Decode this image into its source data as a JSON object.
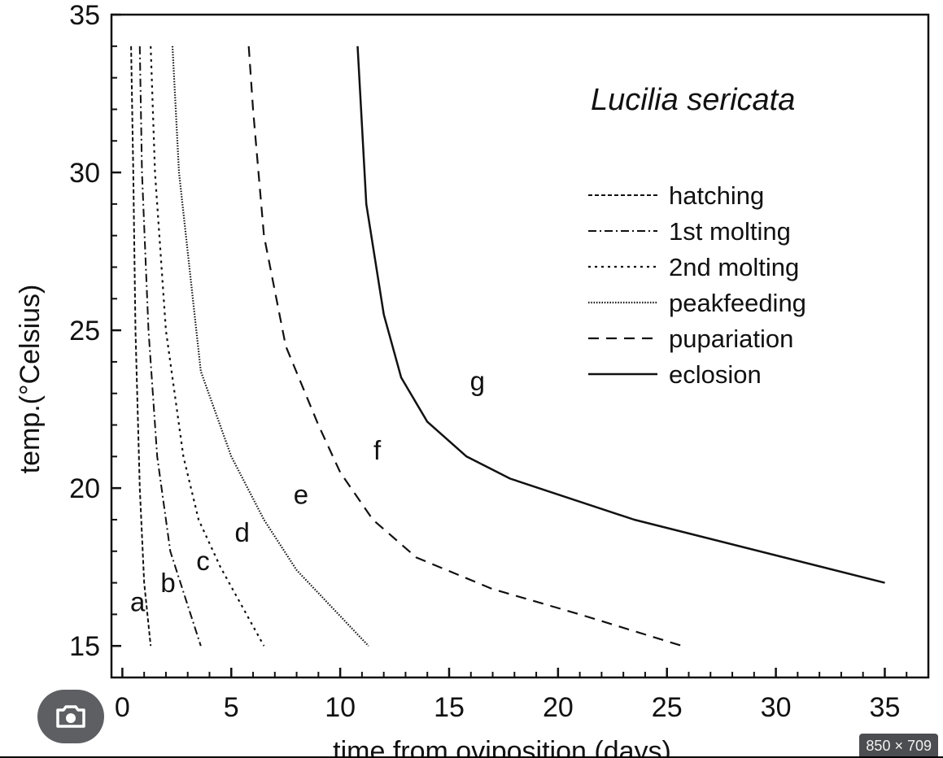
{
  "overlay": {
    "image_size_badge": "850 × 709",
    "lens_icon": "camera-lens-icon"
  },
  "chart_data": {
    "type": "line",
    "title": "Lucilia sericata",
    "xlabel": "time from oviposition (days)",
    "ylabel": "temp.(°Celsius)",
    "xlim": [
      -0.5,
      37
    ],
    "ylim": [
      14,
      35
    ],
    "xticks": [
      0,
      5,
      10,
      15,
      20,
      25,
      30,
      35
    ],
    "yticks": [
      15,
      20,
      25,
      30,
      35
    ],
    "legend_position": "upper-right",
    "series": [
      {
        "name": "hatching",
        "style": "dashed-fine",
        "points": [
          [
            0.4,
            34
          ],
          [
            0.5,
            30
          ],
          [
            0.6,
            25
          ],
          [
            0.8,
            20
          ],
          [
            1.0,
            17
          ],
          [
            1.3,
            15
          ]
        ]
      },
      {
        "name": "1st molting",
        "style": "dash-dot",
        "points": [
          [
            0.8,
            34
          ],
          [
            0.9,
            30
          ],
          [
            1.2,
            25
          ],
          [
            1.6,
            21
          ],
          [
            2.2,
            18
          ],
          [
            3.6,
            15
          ]
        ]
      },
      {
        "name": "2nd molting",
        "style": "dotted",
        "points": [
          [
            1.3,
            34
          ],
          [
            1.5,
            30
          ],
          [
            2.0,
            25
          ],
          [
            2.8,
            21
          ],
          [
            3.5,
            19
          ],
          [
            4.5,
            17.5
          ],
          [
            6.5,
            15
          ]
        ]
      },
      {
        "name": "peakfeeding",
        "style": "dense-dotted",
        "points": [
          [
            2.3,
            34
          ],
          [
            2.6,
            30
          ],
          [
            3.6,
            23.7
          ],
          [
            5.0,
            21.0
          ],
          [
            6.5,
            19.0
          ],
          [
            8.0,
            17.4
          ],
          [
            11.3,
            15
          ]
        ]
      },
      {
        "name": "pupariation",
        "style": "dashed",
        "points": [
          [
            5.8,
            34
          ],
          [
            6.0,
            32
          ],
          [
            6.5,
            28
          ],
          [
            7.5,
            24.5
          ],
          [
            9,
            22
          ],
          [
            10,
            20.5
          ],
          [
            11.5,
            19
          ],
          [
            13.5,
            17.8
          ],
          [
            17,
            16.8
          ],
          [
            21,
            16
          ],
          [
            25.7,
            15
          ]
        ]
      },
      {
        "name": "eclosion",
        "style": "solid",
        "points": [
          [
            10.8,
            34
          ],
          [
            11.2,
            29
          ],
          [
            12,
            25.5
          ],
          [
            12.8,
            23.5
          ],
          [
            14,
            22.1
          ],
          [
            15.8,
            21
          ],
          [
            17.8,
            20.3
          ],
          [
            23.5,
            19
          ],
          [
            35,
            17
          ]
        ]
      }
    ],
    "region_labels": [
      {
        "text": "a",
        "x": 0.7,
        "y": 16.1
      },
      {
        "text": "b",
        "x": 2.1,
        "y": 16.7
      },
      {
        "text": "c",
        "x": 3.7,
        "y": 17.4
      },
      {
        "text": "d",
        "x": 5.5,
        "y": 18.3
      },
      {
        "text": "e",
        "x": 8.2,
        "y": 19.5
      },
      {
        "text": "f",
        "x": 11.7,
        "y": 20.9
      },
      {
        "text": "g",
        "x": 16.3,
        "y": 23.1
      }
    ]
  }
}
